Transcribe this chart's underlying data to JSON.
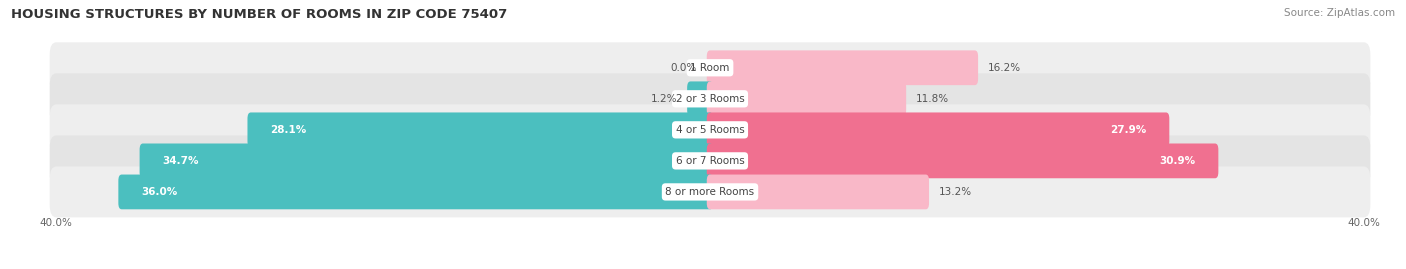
{
  "title": "HOUSING STRUCTURES BY NUMBER OF ROOMS IN ZIP CODE 75407",
  "source": "Source: ZipAtlas.com",
  "categories": [
    "1 Room",
    "2 or 3 Rooms",
    "4 or 5 Rooms",
    "6 or 7 Rooms",
    "8 or more Rooms"
  ],
  "owner_values": [
    0.0,
    1.2,
    28.1,
    34.7,
    36.0
  ],
  "renter_values": [
    16.2,
    11.8,
    27.9,
    30.9,
    13.2
  ],
  "owner_color": "#4BBFBF",
  "renter_color": "#F07090",
  "owner_color_light": "#A8E0E0",
  "renter_color_light": "#F9B8C8",
  "row_bg_color_odd": "#EEEEEE",
  "row_bg_color_even": "#E4E4E4",
  "x_max": 40.0,
  "x_min": -40.0,
  "title_fontsize": 9.5,
  "source_fontsize": 7.5,
  "label_fontsize": 7.5,
  "cat_fontsize": 7.5,
  "legend_fontsize": 8,
  "background_color": "#FFFFFF"
}
